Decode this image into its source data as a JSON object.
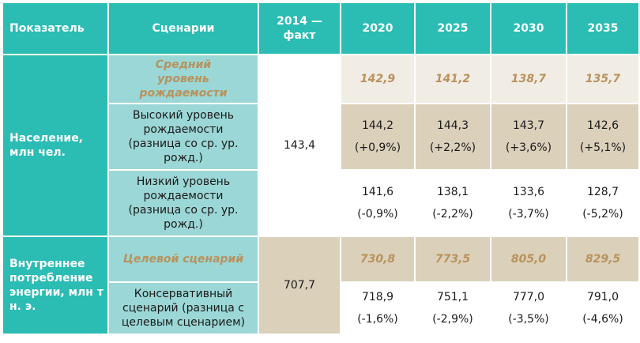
{
  "headers": {
    "indicator": "Показатель",
    "scenarios": "Сценарии",
    "fact": "2014 — факт",
    "y2020": "2020",
    "y2025": "2025",
    "y2030": "2030",
    "y2035": "2035"
  },
  "population": {
    "label": "Население, млн чел.",
    "fact": "143,4",
    "rows": [
      {
        "scenario": "Средний уровень рождаемости",
        "v": [
          "142,9",
          "141,2",
          "138,7",
          "135,7"
        ],
        "p": [
          "",
          "",
          "",
          ""
        ]
      },
      {
        "scenario": "Высокий уровень рождаемости (разница со ср. ур. рожд.)",
        "v": [
          "144,2",
          "144,3",
          "143,7",
          "142,6"
        ],
        "p": [
          "(+0,9%)",
          "(+2,2%)",
          "(+3,6%)",
          "(+5,1%)"
        ]
      },
      {
        "scenario": "Низкий уровень рождаемости (разница со ср. ур. рожд.)",
        "v": [
          "141,6",
          "138,1",
          "133,6",
          "128,7"
        ],
        "p": [
          "(-0,9%)",
          "(-2,2%)",
          "(-3,7%)",
          "(-5,2%)"
        ]
      }
    ]
  },
  "energy": {
    "label": "Внутреннее потребление энергии, млн т н. э.",
    "fact": "707,7",
    "rows": [
      {
        "scenario": "Целевой сценарий",
        "v": [
          "730,8",
          "773,5",
          "805,0",
          "829,5"
        ],
        "p": [
          "",
          "",
          "",
          ""
        ]
      },
      {
        "scenario": "Консервативный сценарий (разница с целевым сценарием)",
        "v": [
          "718,9",
          "751,1",
          "777,0",
          "791,0"
        ],
        "p": [
          "(-1,6%)",
          "(-2,9%)",
          "(-3,5%)",
          "(-4,6%)"
        ]
      }
    ]
  }
}
